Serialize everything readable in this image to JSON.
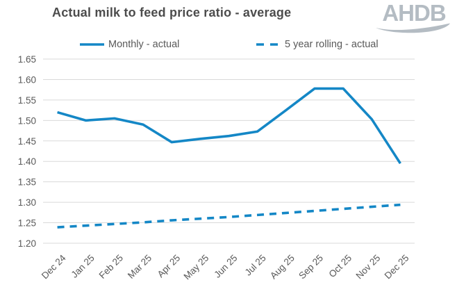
{
  "header": {
    "title": "Actual milk to feed price ratio - average",
    "logo_text": "AHDB"
  },
  "legend": [
    {
      "label": "Monthly - actual",
      "style": "solid"
    },
    {
      "label": "5 year rolling - actual",
      "style": "dashed"
    }
  ],
  "colors": {
    "line_blue": "#1487c6",
    "grid": "#d9d9d9",
    "axis_text": "#595959",
    "title_text": "#4c4c4c",
    "logo_gray": "#b4bcc3"
  },
  "chart_data": {
    "type": "line",
    "title": "Actual milk to feed price ratio - average",
    "categories": [
      "Dec 24",
      "Jan 25",
      "Feb 25",
      "Mar 25",
      "Apr 25",
      "May 25",
      "Jun 25",
      "Jul 25",
      "Aug 25",
      "Sep 25",
      "Oct 25",
      "Nov 25",
      "Dec 25"
    ],
    "series": [
      {
        "name": "Monthly - actual",
        "style": "solid",
        "values": [
          1.52,
          1.5,
          1.505,
          1.49,
          1.447,
          1.455,
          1.462,
          1.473,
          1.525,
          1.578,
          1.578,
          1.503,
          1.395
        ]
      },
      {
        "name": "5 year rolling - actual",
        "style": "dashed",
        "values": [
          1.239,
          1.243,
          1.247,
          1.251,
          1.256,
          1.26,
          1.264,
          1.269,
          1.274,
          1.279,
          1.284,
          1.289,
          1.294
        ]
      }
    ],
    "xlabel": "",
    "ylabel": "",
    "ylim": [
      1.2,
      1.65
    ],
    "ytick_step": 0.05,
    "ytick_labels": [
      "1.65",
      "1.60",
      "1.55",
      "1.50",
      "1.45",
      "1.40",
      "1.35",
      "1.30",
      "1.25",
      "1.20"
    ],
    "grid": true,
    "legend_position": "top"
  }
}
